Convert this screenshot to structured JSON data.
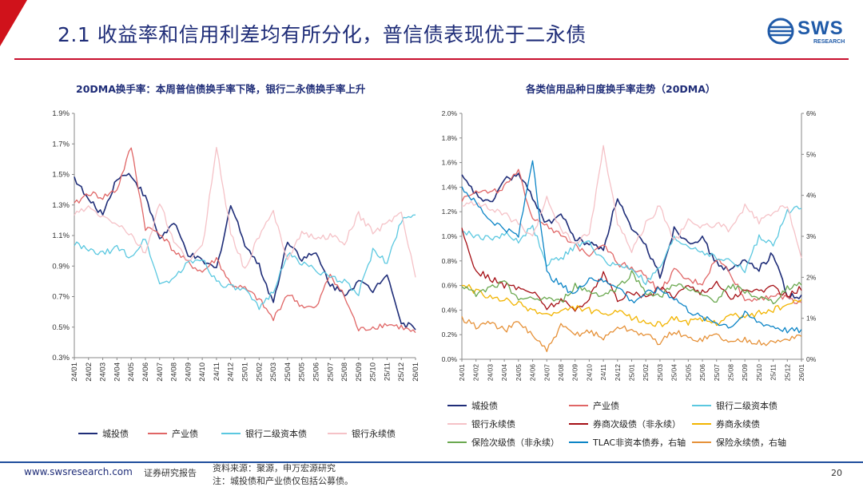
{
  "slide": {
    "title": "2.1 收益率和信用利差均有所分化，普信债表现优于二永债",
    "page_number": "20",
    "colors": {
      "accent_red": "#d0121b",
      "title_blue": "#1f2d78"
    }
  },
  "logo": {
    "text": "SWS",
    "sub": "RESEARCH"
  },
  "footer": {
    "website": "www.swsresearch.com",
    "report_type": "证券研究报告",
    "source": "资料来源：聚源，申万宏源研究",
    "note": "注：城投债和产业债仅包括公募债。"
  },
  "chart_data": [
    {
      "type": "line",
      "title": "20DMA换手率：本周普信债换手率下降，银行二永债换手率上升",
      "categories": [
        "24/01",
        "24/02",
        "24/03",
        "24/04",
        "24/05",
        "24/06",
        "24/07",
        "24/08",
        "24/09",
        "24/10",
        "24/11",
        "24/12",
        "25/01",
        "25/02",
        "25/03",
        "25/04",
        "25/05",
        "25/06",
        "25/07",
        "25/08",
        "25/09",
        "25/10",
        "25/11",
        "25/12",
        "26/01"
      ],
      "y_ticks": [
        "0.3%",
        "0.5%",
        "0.7%",
        "0.9%",
        "1.1%",
        "1.3%",
        "1.5%",
        "1.7%",
        "1.9%"
      ],
      "ylim": [
        0.3,
        1.9
      ],
      "series": [
        {
          "name": "城投债",
          "color": "#1f2d78",
          "axis": "left",
          "values": [
            1.48,
            1.33,
            1.24,
            1.48,
            1.5,
            1.35,
            1.08,
            1.18,
            0.98,
            0.93,
            0.88,
            1.3,
            1.05,
            0.9,
            0.66,
            1.07,
            0.95,
            0.98,
            0.78,
            0.72,
            0.8,
            0.74,
            0.86,
            0.52,
            0.5
          ]
        },
        {
          "name": "产业债",
          "color": "#e06666",
          "axis": "left",
          "values": [
            1.3,
            1.38,
            1.35,
            1.4,
            1.68,
            1.15,
            1.12,
            1.0,
            0.92,
            0.86,
            0.95,
            0.78,
            0.75,
            0.68,
            0.55,
            0.72,
            0.64,
            0.62,
            0.85,
            0.7,
            0.48,
            0.5,
            0.52,
            0.5,
            0.46
          ]
        },
        {
          "name": "银行二级资本债",
          "color": "#5bc8e0",
          "axis": "left",
          "values": [
            1.05,
            1.0,
            0.98,
            1.02,
            0.96,
            1.08,
            0.78,
            0.82,
            0.92,
            0.95,
            0.8,
            0.76,
            0.74,
            0.62,
            0.74,
            0.98,
            0.92,
            0.88,
            0.82,
            0.8,
            0.72,
            1.0,
            0.92,
            1.2,
            1.25
          ]
        },
        {
          "name": "银行永续债",
          "color": "#f5c2c7",
          "axis": "left",
          "values": [
            1.24,
            1.28,
            1.22,
            1.18,
            1.1,
            0.98,
            1.32,
            1.05,
            0.94,
            1.02,
            1.68,
            1.12,
            0.88,
            1.1,
            1.25,
            0.95,
            1.12,
            1.08,
            1.1,
            1.05,
            1.24,
            1.12,
            1.18,
            1.26,
            0.82
          ]
        }
      ]
    },
    {
      "type": "line",
      "title": "各类信用品种日度换手率走势（20DMA）",
      "categories": [
        "24/01",
        "24/02",
        "24/03",
        "24/04",
        "24/05",
        "24/06",
        "24/07",
        "24/08",
        "24/09",
        "24/10",
        "24/11",
        "24/12",
        "25/01",
        "25/02",
        "25/03",
        "25/04",
        "25/05",
        "25/06",
        "25/07",
        "25/08",
        "25/09",
        "25/10",
        "25/11",
        "25/12",
        "26/01"
      ],
      "y_ticks_left": [
        "0.0%",
        "0.2%",
        "0.4%",
        "0.6%",
        "0.8%",
        "1.0%",
        "1.2%",
        "1.4%",
        "1.6%",
        "1.8%",
        "2.0%"
      ],
      "y_ticks_right": [
        "0%",
        "1%",
        "2%",
        "3%",
        "4%",
        "5%",
        "6%"
      ],
      "ylim_left": [
        0,
        2.0
      ],
      "ylim_right": [
        0,
        6
      ],
      "series": [
        {
          "name": "城投债",
          "color": "#1f2d78",
          "axis": "left",
          "values": [
            1.48,
            1.34,
            1.26,
            1.46,
            1.5,
            1.32,
            1.1,
            1.18,
            0.98,
            0.94,
            0.9,
            1.32,
            1.05,
            0.92,
            0.68,
            1.06,
            0.96,
            0.98,
            0.78,
            0.72,
            0.8,
            0.74,
            0.86,
            0.52,
            0.5
          ]
        },
        {
          "name": "产业债",
          "color": "#e06666",
          "axis": "left",
          "values": [
            1.3,
            1.38,
            1.35,
            1.4,
            1.52,
            1.15,
            1.1,
            1.0,
            0.92,
            0.86,
            0.95,
            0.78,
            0.75,
            0.68,
            0.55,
            0.72,
            0.64,
            0.62,
            0.82,
            0.7,
            0.48,
            0.5,
            0.52,
            0.5,
            0.46
          ]
        },
        {
          "name": "银行二级资本债",
          "color": "#5bc8e0",
          "axis": "left",
          "values": [
            1.04,
            1.0,
            0.98,
            1.02,
            0.96,
            1.08,
            0.78,
            0.82,
            0.92,
            0.95,
            0.8,
            0.76,
            0.74,
            0.62,
            0.74,
            0.98,
            0.92,
            0.88,
            0.82,
            0.8,
            0.72,
            1.0,
            0.92,
            1.2,
            1.25
          ]
        },
        {
          "name": "银行永续债",
          "color": "#f5c2c7",
          "axis": "left",
          "values": [
            1.24,
            1.28,
            1.22,
            1.18,
            1.1,
            0.98,
            1.32,
            1.05,
            0.94,
            1.02,
            1.72,
            1.12,
            0.88,
            1.1,
            1.25,
            0.95,
            1.12,
            1.08,
            1.1,
            1.05,
            1.24,
            1.12,
            1.18,
            1.26,
            0.82
          ]
        },
        {
          "name": "券商次级债（非永续）",
          "color": "#a50f15",
          "axis": "left",
          "values": [
            1.05,
            0.72,
            0.66,
            0.6,
            0.58,
            0.55,
            0.42,
            0.48,
            0.4,
            0.5,
            0.7,
            0.48,
            0.55,
            0.5,
            0.58,
            0.52,
            0.6,
            0.54,
            0.62,
            0.5,
            0.55,
            0.56,
            0.58,
            0.52,
            0.58
          ]
        },
        {
          "name": "券商永续债",
          "color": "#f2b400",
          "axis": "left",
          "values": [
            0.62,
            0.55,
            0.5,
            0.48,
            0.45,
            0.4,
            0.36,
            0.38,
            0.42,
            0.4,
            0.36,
            0.38,
            0.34,
            0.3,
            0.28,
            0.34,
            0.3,
            0.32,
            0.3,
            0.36,
            0.34,
            0.38,
            0.4,
            0.44,
            0.48
          ]
        },
        {
          "name": "保险次级债（非永续）",
          "color": "#6aa84f",
          "axis": "left",
          "values": [
            0.6,
            0.52,
            0.58,
            0.62,
            0.5,
            0.48,
            0.5,
            0.46,
            0.6,
            0.55,
            0.52,
            0.58,
            0.7,
            0.55,
            0.5,
            0.62,
            0.56,
            0.52,
            0.48,
            0.6,
            0.55,
            0.5,
            0.46,
            0.58,
            0.62
          ]
        },
        {
          "name": "TLAC非资本债券，右轴",
          "color": "#0b84c6",
          "axis": "right",
          "values": [
            4.2,
            3.8,
            3.4,
            3.2,
            3.0,
            4.9,
            2.1,
            1.8,
            1.6,
            2.0,
            1.9,
            1.8,
            1.4,
            1.6,
            1.7,
            1.5,
            1.2,
            1.0,
            0.9,
            0.8,
            1.1,
            0.9,
            0.8,
            0.7,
            0.7
          ]
        },
        {
          "name": "保险永续债，右轴",
          "color": "#e69138",
          "axis": "right",
          "values": [
            1.0,
            0.8,
            0.9,
            0.7,
            0.9,
            0.6,
            0.2,
            0.8,
            0.6,
            0.7,
            0.5,
            0.8,
            0.7,
            0.6,
            0.4,
            0.7,
            0.5,
            0.5,
            0.6,
            0.4,
            0.5,
            0.4,
            0.4,
            0.5,
            0.6
          ]
        }
      ]
    }
  ]
}
